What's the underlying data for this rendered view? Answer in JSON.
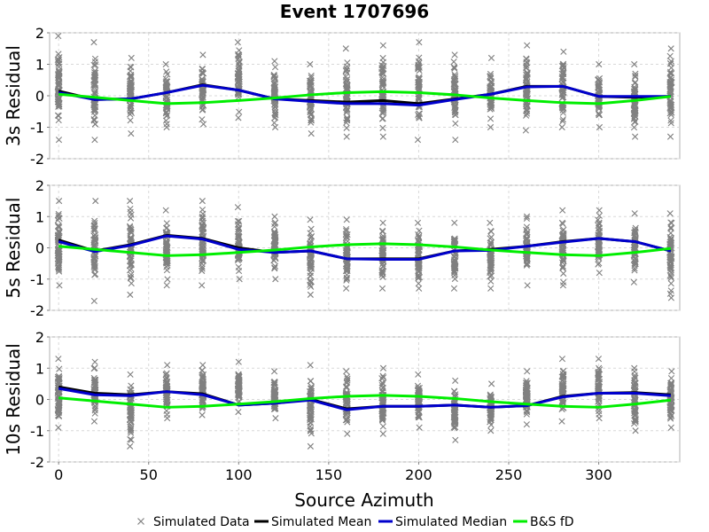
{
  "chart_data": {
    "type": "scatter",
    "title": "Event 1707696",
    "xlabel": "Source Azimuth",
    "xlim": [
      -5,
      345
    ],
    "xticks": [
      0,
      50,
      100,
      150,
      200,
      250,
      300
    ],
    "ylim": [
      -2,
      2
    ],
    "yticks": [
      -2,
      -1,
      0,
      1,
      2
    ],
    "grid": true,
    "legend": {
      "placement": "bottom",
      "entries": [
        {
          "name": "Simulated Data",
          "color": "#808080",
          "marker": "x"
        },
        {
          "name": "Simulated Mean",
          "color": "#000000",
          "marker": "line"
        },
        {
          "name": "Simulated Median",
          "color": "#0000cc",
          "marker": "line"
        },
        {
          "name": "B&S fD",
          "color": "#00ee00",
          "marker": "line"
        }
      ]
    },
    "azimuths": [
      0,
      20,
      40,
      60,
      80,
      100,
      120,
      140,
      160,
      180,
      200,
      220,
      240,
      260,
      280,
      300,
      320,
      340
    ],
    "panels": [
      {
        "ylabel": "3s Residual",
        "data_range": {
          "min": [
            -1.4,
            -1.4,
            -1.2,
            -1.0,
            -0.9,
            -0.7,
            -1.0,
            -1.2,
            -1.3,
            -1.3,
            -1.4,
            -1.4,
            -1.0,
            -1.1,
            -1.0,
            -1.0,
            -1.3,
            -1.3
          ],
          "max": [
            1.9,
            1.7,
            1.2,
            1.0,
            1.3,
            1.7,
            1.1,
            1.0,
            1.5,
            1.6,
            1.7,
            1.3,
            1.2,
            1.6,
            1.4,
            1.0,
            1.0,
            1.5
          ]
        },
        "series": [
          {
            "name": "Simulated Mean",
            "values": [
              0.15,
              -0.12,
              -0.1,
              0.1,
              0.35,
              0.18,
              -0.1,
              -0.15,
              -0.2,
              -0.15,
              -0.25,
              -0.1,
              0.05,
              0.3,
              0.3,
              -0.02,
              -0.05,
              -0.02
            ]
          },
          {
            "name": "Simulated Median",
            "values": [
              0.1,
              -0.12,
              -0.1,
              0.1,
              0.33,
              0.18,
              -0.1,
              -0.18,
              -0.25,
              -0.25,
              -0.3,
              -0.12,
              0.05,
              0.28,
              0.3,
              -0.02,
              -0.02,
              -0.02
            ]
          },
          {
            "name": "B&S fD",
            "values": [
              0.05,
              -0.05,
              -0.15,
              -0.25,
              -0.22,
              -0.15,
              -0.07,
              0.03,
              0.1,
              0.13,
              0.1,
              0.03,
              -0.07,
              -0.15,
              -0.22,
              -0.25,
              -0.15,
              -0.02
            ]
          }
        ]
      },
      {
        "ylabel": "5s Residual",
        "data_range": {
          "min": [
            -1.2,
            -1.7,
            -1.5,
            -1.2,
            -1.2,
            -1.0,
            -1.0,
            -1.5,
            -1.3,
            -1.3,
            -1.3,
            -1.3,
            -1.3,
            -1.2,
            -1.2,
            -0.8,
            -1.1,
            -1.6
          ],
          "max": [
            1.5,
            1.5,
            1.5,
            1.2,
            1.5,
            1.3,
            1.0,
            0.9,
            0.9,
            0.8,
            0.8,
            0.8,
            0.8,
            1.0,
            1.2,
            1.2,
            1.1,
            1.1
          ]
        },
        "series": [
          {
            "name": "Simulated Mean",
            "values": [
              0.25,
              -0.1,
              0.1,
              0.4,
              0.3,
              0.0,
              -0.15,
              -0.1,
              -0.35,
              -0.35,
              -0.35,
              -0.1,
              -0.05,
              0.05,
              0.2,
              0.3,
              0.2,
              -0.1
            ]
          },
          {
            "name": "Simulated Median",
            "values": [
              0.2,
              -0.12,
              0.08,
              0.38,
              0.28,
              -0.05,
              -0.15,
              -0.1,
              -0.35,
              -0.37,
              -0.37,
              -0.1,
              -0.08,
              0.05,
              0.18,
              0.3,
              0.2,
              -0.1
            ]
          },
          {
            "name": "B&S fD",
            "values": [
              0.05,
              -0.05,
              -0.15,
              -0.25,
              -0.22,
              -0.15,
              -0.07,
              0.03,
              0.1,
              0.13,
              0.1,
              0.03,
              -0.07,
              -0.15,
              -0.22,
              -0.25,
              -0.15,
              -0.02
            ]
          }
        ]
      },
      {
        "ylabel": "10s Residual",
        "data_range": {
          "min": [
            -0.9,
            -0.7,
            -1.5,
            -0.6,
            -0.5,
            -0.4,
            -0.6,
            -1.5,
            -1.1,
            -1.1,
            -0.9,
            -1.3,
            -1.0,
            -0.8,
            -0.7,
            -0.6,
            -1.0,
            -0.9
          ],
          "max": [
            1.3,
            1.2,
            0.8,
            1.1,
            1.1,
            1.2,
            0.9,
            1.1,
            0.9,
            1.0,
            0.8,
            0.6,
            0.5,
            0.9,
            1.3,
            1.3,
            1.0,
            0.9
          ]
        },
        "series": [
          {
            "name": "Simulated Mean",
            "values": [
              0.4,
              0.2,
              0.15,
              0.25,
              0.18,
              -0.18,
              -0.12,
              0.0,
              -0.3,
              -0.22,
              -0.22,
              -0.18,
              -0.25,
              -0.2,
              0.1,
              0.2,
              0.22,
              0.15
            ]
          },
          {
            "name": "Simulated Median",
            "values": [
              0.35,
              0.15,
              0.12,
              0.25,
              0.15,
              -0.18,
              -0.12,
              -0.02,
              -0.33,
              -0.22,
              -0.22,
              -0.18,
              -0.25,
              -0.2,
              0.08,
              0.2,
              0.2,
              0.12
            ]
          },
          {
            "name": "B&S fD",
            "values": [
              0.05,
              -0.05,
              -0.15,
              -0.25,
              -0.22,
              -0.15,
              -0.07,
              0.03,
              0.1,
              0.13,
              0.1,
              0.03,
              -0.07,
              -0.15,
              -0.22,
              -0.25,
              -0.15,
              -0.02
            ]
          }
        ]
      }
    ]
  }
}
